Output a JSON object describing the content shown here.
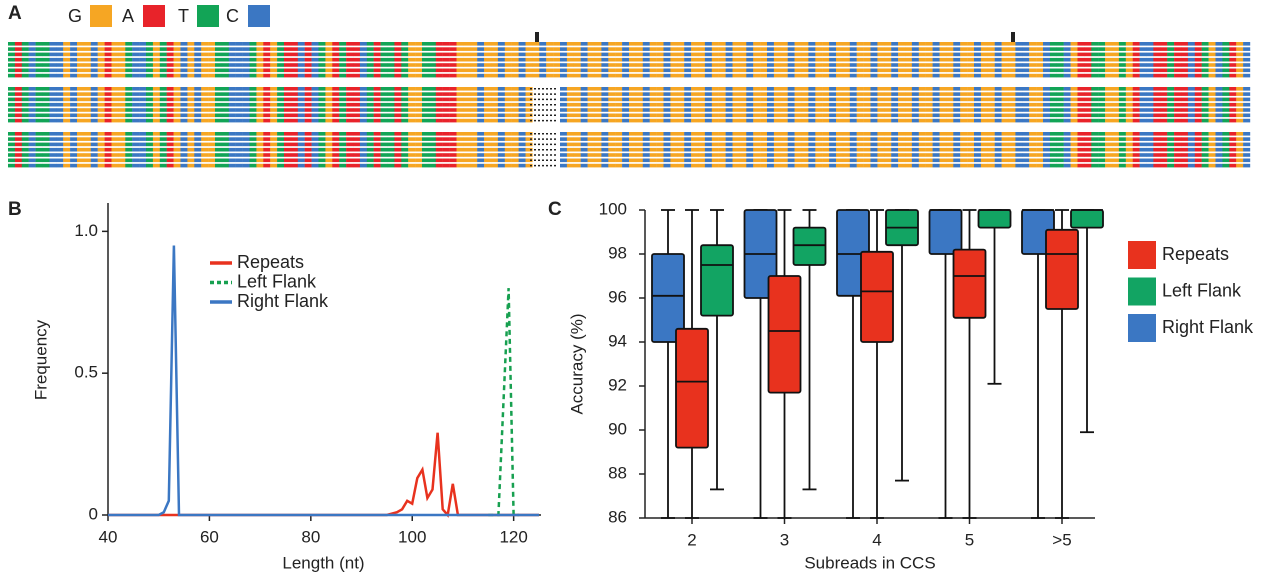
{
  "chart_data": [
    {
      "type": "alignment",
      "panel_label": "A",
      "legend": [
        {
          "name": "G",
          "color": "#f6a623"
        },
        {
          "name": "A",
          "color": "#e8232a"
        },
        {
          "name": "T",
          "color": "#12a456"
        },
        {
          "name": "C",
          "color": "#3b77c3"
        }
      ]
    },
    {
      "type": "line",
      "panel_label": "B",
      "xlabel": "Length (nt)",
      "ylabel": "Frequency",
      "xlim": [
        40,
        125
      ],
      "xticks": [
        40,
        60,
        80,
        100,
        120
      ],
      "ylim": [
        0,
        1.1
      ],
      "yticks": [
        0,
        0.5,
        {
          "value": 1,
          "label": "1.0"
        }
      ],
      "series": [
        {
          "name": "Repeats",
          "color": "#e8321e",
          "style": "solid",
          "x": [
            40,
            95,
            97,
            98,
            99,
            100,
            101,
            102,
            103,
            104,
            105,
            106,
            107,
            108,
            109,
            125
          ],
          "values": [
            0,
            0,
            0.01,
            0.02,
            0.05,
            0.04,
            0.13,
            0.16,
            0.06,
            0.09,
            0.29,
            0.02,
            0,
            0.11,
            0,
            0
          ]
        },
        {
          "name": "Left Flank",
          "color": "#17a050",
          "style": "dashed",
          "x": [
            115,
            117,
            118,
            119,
            120,
            121
          ],
          "values": [
            0,
            0,
            0.4,
            0.8,
            0,
            0
          ]
        },
        {
          "name": "Right Flank",
          "color": "#3b77c3",
          "style": "solid",
          "x": [
            40,
            50,
            51,
            52,
            53,
            54,
            55,
            125
          ],
          "values": [
            0,
            0,
            0.01,
            0.05,
            0.95,
            0,
            0,
            0
          ]
        }
      ]
    },
    {
      "type": "box",
      "panel_label": "C",
      "xlabel": "Subreads in CCS",
      "ylabel": "Accuracy (%)",
      "categories": [
        "2",
        "3",
        "4",
        "5",
        ">5"
      ],
      "ylim": [
        86,
        100
      ],
      "yticks": [
        86,
        88,
        90,
        92,
        94,
        96,
        98,
        100
      ],
      "series": [
        {
          "name": "Repeats",
          "color": "#e8321e",
          "values": [
            {
              "min": 86,
              "q1": 89.2,
              "median": 92.2,
              "q3": 94.6,
              "max": 100
            },
            {
              "min": 86,
              "q1": 91.7,
              "median": 94.5,
              "q3": 97,
              "max": 100
            },
            {
              "min": 86,
              "q1": 94,
              "median": 96.3,
              "q3": 98.1,
              "max": 100
            },
            {
              "min": 86,
              "q1": 95.1,
              "median": 97,
              "q3": 98.2,
              "max": 100
            },
            {
              "min": 86,
              "q1": 95.5,
              "median": 98,
              "q3": 99.1,
              "max": 100
            }
          ]
        },
        {
          "name": "Left Flank",
          "color": "#12a463",
          "values": [
            {
              "min": 87.3,
              "q1": 95.2,
              "median": 97.5,
              "q3": 98.4,
              "max": 100
            },
            {
              "min": 87.3,
              "q1": 97.5,
              "median": 98.4,
              "q3": 99.2,
              "max": 100
            },
            {
              "min": 87.7,
              "q1": 98.4,
              "median": 99.2,
              "q3": 100,
              "max": 100
            },
            {
              "min": 92.1,
              "q1": 99.2,
              "median": 100,
              "q3": 100,
              "max": 100
            },
            {
              "min": 89.9,
              "q1": 99.2,
              "median": 100,
              "q3": 100,
              "max": 100
            }
          ]
        },
        {
          "name": "Right Flank",
          "color": "#3b77c3",
          "values": [
            {
              "min": 86,
              "q1": 94,
              "median": 96.1,
              "q3": 98,
              "max": 100
            },
            {
              "min": 86,
              "q1": 96,
              "median": 98,
              "q3": 100,
              "max": 100
            },
            {
              "min": 86,
              "q1": 96.1,
              "median": 98,
              "q3": 100,
              "max": 100
            },
            {
              "min": 86,
              "q1": 98,
              "median": 100,
              "q3": 100,
              "max": 100
            },
            {
              "min": 86,
              "q1": 98,
              "median": 100,
              "q3": 100,
              "max": 100
            }
          ]
        }
      ]
    }
  ]
}
